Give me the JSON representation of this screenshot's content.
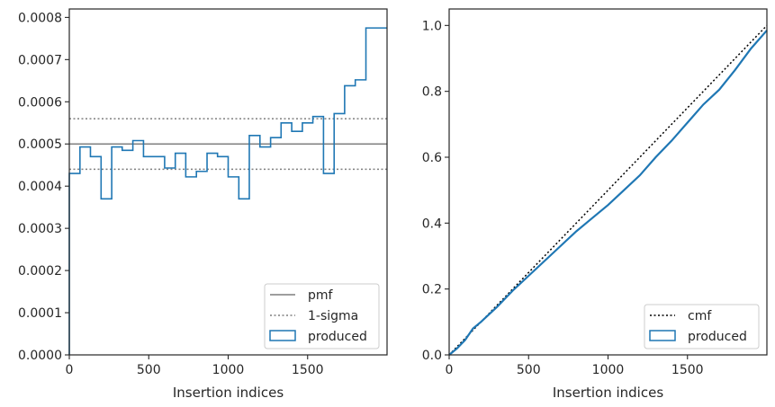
{
  "colors": {
    "produced": "#1f77b4",
    "reference": "#7f7f7f",
    "cmf": "#000000",
    "axes": "#262626"
  },
  "chart_data": [
    {
      "type": "histogram-step",
      "xlabel": "Insertion indices",
      "ylabel": "",
      "xlim": [
        0,
        2000
      ],
      "ylim": [
        0,
        0.00082
      ],
      "x_ticks": [
        0,
        500,
        1000,
        1500
      ],
      "x_tick_labels": [
        "0",
        "500",
        "1000",
        "1500"
      ],
      "y_ticks": [
        0,
        0.0001,
        0.0002,
        0.0003,
        0.0004,
        0.0005,
        0.0006,
        0.0007,
        0.0008
      ],
      "y_tick_labels": [
        "0.0000",
        "0.0001",
        "0.0002",
        "0.0003",
        "0.0004",
        "0.0005",
        "0.0006",
        "0.0007",
        "0.0008"
      ],
      "bin_edges": [
        0,
        67,
        133,
        200,
        267,
        333,
        400,
        467,
        533,
        600,
        667,
        733,
        800,
        867,
        933,
        1000,
        1067,
        1133,
        1200,
        1267,
        1333,
        1400,
        1467,
        1533,
        1600,
        1667,
        1733,
        1800,
        1867,
        1933,
        2000
      ],
      "values": [
        0.00043,
        0.000493,
        0.00047,
        0.00037,
        0.000493,
        0.000485,
        0.000508,
        0.00047,
        0.00047,
        0.000443,
        0.000478,
        0.000422,
        0.000435,
        0.000478,
        0.00047,
        0.000422,
        0.00037,
        0.00052,
        0.000493,
        0.000515,
        0.00055,
        0.00053,
        0.00055,
        0.000565,
        0.00043,
        0.000572,
        0.000638,
        0.000652,
        0.000775,
        0.000775
      ],
      "reference_lines": [
        {
          "name": "pmf",
          "y": 0.0005,
          "style": "solid"
        },
        {
          "name": "1-sigma",
          "y": 0.00056,
          "style": "dotted"
        },
        {
          "name": "1-sigma",
          "y": 0.00044,
          "style": "dotted"
        }
      ],
      "legend": {
        "placement": "lower-right",
        "entries": [
          "pmf",
          "1-sigma",
          "produced"
        ]
      }
    },
    {
      "type": "line",
      "xlabel": "Insertion indices",
      "ylabel": "",
      "xlim": [
        0,
        2000
      ],
      "ylim": [
        0,
        1.05
      ],
      "x_ticks": [
        0,
        500,
        1000,
        1500
      ],
      "x_tick_labels": [
        "0",
        "500",
        "1000",
        "1500"
      ],
      "y_ticks": [
        0,
        0.2,
        0.4,
        0.6,
        0.8,
        1.0
      ],
      "y_tick_labels": [
        "0.0",
        "0.2",
        "0.4",
        "0.6",
        "0.8",
        "1.0"
      ],
      "series": [
        {
          "name": "cmf",
          "style": "dotted",
          "x": [
            0,
            2000
          ],
          "y": [
            0,
            1.0
          ]
        },
        {
          "name": "produced",
          "style": "solid",
          "x": [
            0,
            50,
            100,
            150,
            200,
            300,
            400,
            500,
            600,
            700,
            800,
            900,
            1000,
            1100,
            1200,
            1300,
            1400,
            1500,
            1600,
            1700,
            1800,
            1900,
            2000
          ],
          "y": [
            0,
            0.02,
            0.045,
            0.08,
            0.1,
            0.145,
            0.195,
            0.24,
            0.285,
            0.33,
            0.375,
            0.415,
            0.455,
            0.5,
            0.545,
            0.6,
            0.65,
            0.705,
            0.76,
            0.805,
            0.865,
            0.93,
            0.985
          ]
        }
      ],
      "legend": {
        "placement": "lower-right",
        "entries": [
          "cmf",
          "produced"
        ]
      }
    }
  ]
}
